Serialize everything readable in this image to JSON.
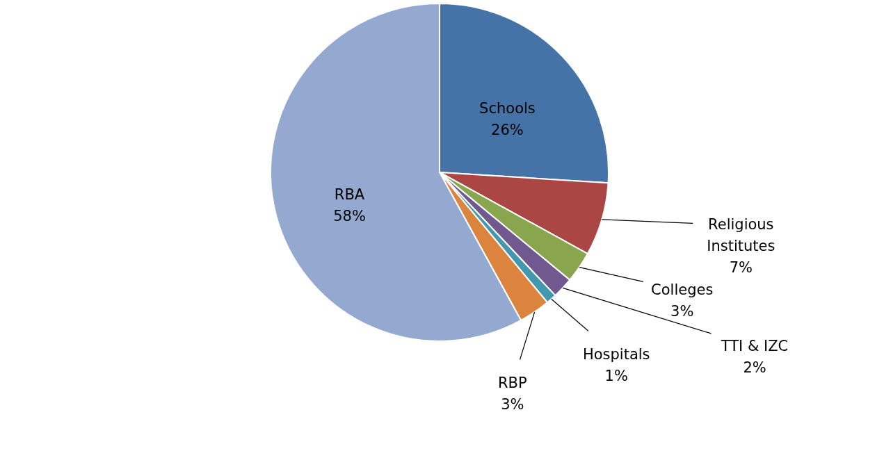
{
  "chart_data": {
    "type": "pie",
    "categories": [
      "Schools",
      "Religious Institutes",
      "Colleges",
      "TTI & IZC",
      "Hospitals",
      "RBP",
      "RBA"
    ],
    "values": [
      26,
      7,
      3,
      2,
      1,
      3,
      58
    ],
    "colors": [
      "#4572a7",
      "#aa4643",
      "#89a54e",
      "#71588f",
      "#4198af",
      "#db843d",
      "#93a9cf"
    ],
    "value_labels": [
      "26%",
      "7%",
      "3%",
      "2%",
      "1%",
      "3%",
      "58%"
    ]
  }
}
